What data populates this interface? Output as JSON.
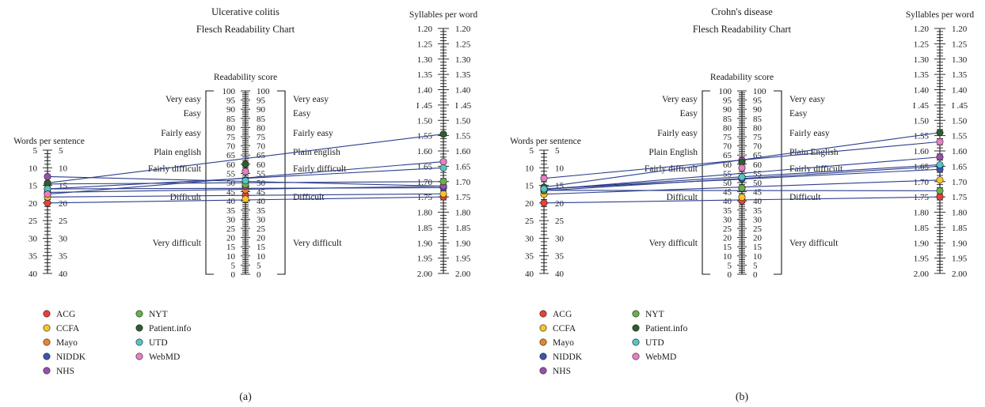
{
  "labels": {
    "words_axis": "Words per sentence",
    "readability_axis": "Readability score",
    "syllables_axis": "Syllables per word"
  },
  "words_ticks": [
    "5",
    "10",
    "15",
    "20",
    "25",
    "30",
    "35",
    "40"
  ],
  "readability_ticks": [
    "100",
    "95",
    "90",
    "85",
    "80",
    "75",
    "70",
    "65",
    "60",
    "55",
    "50",
    "45",
    "40",
    "35",
    "30",
    "25",
    "20",
    "15",
    "10",
    "5",
    "0"
  ],
  "syllable_ticks": [
    "1.20",
    "1.25",
    "1.30",
    "1.35",
    "1.40",
    "I .45",
    "1.50",
    "1.55",
    "1.60",
    "1.65",
    "1.70",
    "1.75",
    "1.80",
    "1.85",
    "1.90",
    "1.95",
    "2.00"
  ],
  "legend": [
    {
      "name": "ACG",
      "color": "#e8403a"
    },
    {
      "name": "CCFA",
      "color": "#f5c52a"
    },
    {
      "name": "Mayo",
      "color": "#e8862e"
    },
    {
      "name": "NIDDK",
      "color": "#3b57b0"
    },
    {
      "name": "NHS",
      "color": "#9a4fae"
    },
    {
      "name": "NYT",
      "color": "#6ab04c"
    },
    {
      "name": "Patient.info",
      "color": "#2e5e2e"
    },
    {
      "name": "UTD",
      "color": "#55c4c4"
    },
    {
      "name": "WebMD",
      "color": "#e77fc4"
    }
  ],
  "chart_data": [
    {
      "type": "scatter",
      "panel_label": "(a)",
      "title": "Ulcerative colitis",
      "subtitle": "Flesch Readability Chart",
      "xlabel": "Words per sentence",
      "ylabel": "Syllables per word",
      "categories_left": [
        "Very easy",
        "Easy",
        "Fairly easy",
        "Plain english",
        "Fairly difficult",
        "Difficult",
        "Very difficult"
      ],
      "categories_right": [
        "Very easy",
        "Easy",
        "Fairly easy",
        "Plain english",
        "Fairly difficult",
        "Difficult",
        "Very difficult"
      ],
      "axis_ranges": {
        "words_per_sentence": [
          5,
          40
        ],
        "readability_score": [
          0,
          100
        ],
        "syllables_per_word": [
          1.2,
          2.0
        ]
      },
      "series": [
        {
          "name": "ACG",
          "words": 20.0,
          "readability": 43,
          "syllables": 1.75
        },
        {
          "name": "CCFA",
          "words": 18.3,
          "readability": 41,
          "syllables": 1.74
        },
        {
          "name": "Mayo",
          "words": 17.0,
          "readability": 46,
          "syllables": 1.715
        },
        {
          "name": "NIDDK",
          "words": 16.0,
          "readability": 48,
          "syllables": 1.72
        },
        {
          "name": "NHS",
          "words": 12.5,
          "readability": 48,
          "syllables": 1.715
        },
        {
          "name": "NYT",
          "words": 14.6,
          "readability": 49,
          "syllables": 1.7
        },
        {
          "name": "Patient.info",
          "words": 14.3,
          "readability": 60,
          "syllables": 1.545
        },
        {
          "name": "UTD",
          "words": 16.0,
          "readability": 51,
          "syllables": 1.655
        },
        {
          "name": "WebMD",
          "words": 17.5,
          "readability": 56,
          "syllables": 1.635
        }
      ]
    },
    {
      "type": "scatter",
      "panel_label": "(b)",
      "title": "Crohn's disease",
      "subtitle": "Flesch Readability Chart",
      "xlabel": "Words per sentence",
      "ylabel": "Syllables per word",
      "categories_left": [
        "Very easy",
        "Easy",
        "Fairly easy",
        "Plain English",
        "Fairly difficult",
        "Difficult",
        "Very difficult"
      ],
      "categories_right": [
        "Very easy",
        "Easy",
        "Fairly easy",
        "Plain English",
        "Fairly difficult",
        "Difficult",
        "Very difficult"
      ],
      "axis_ranges": {
        "words_per_sentence": [
          5,
          40
        ],
        "readability_score": [
          0,
          100
        ],
        "syllables_per_word": [
          1.2,
          2.0
        ]
      },
      "series": [
        {
          "name": "ACG",
          "words": 20.0,
          "readability": 40,
          "syllables": 1.75
        },
        {
          "name": "CCFA",
          "words": 17.5,
          "readability": 42,
          "syllables": 1.695
        },
        {
          "name": "Mayo",
          "words": 16.5,
          "readability": 47,
          "syllables": 1.65
        },
        {
          "name": "NIDDK",
          "words": 16.0,
          "readability": 52,
          "syllables": 1.66
        },
        {
          "name": "NHS",
          "words": 16.2,
          "readability": 62,
          "syllables": 1.62
        },
        {
          "name": "NYT",
          "words": 16.4,
          "readability": 47,
          "syllables": 1.73
        },
        {
          "name": "Patient.info",
          "words": 15.5,
          "readability": 61,
          "syllables": 1.54
        },
        {
          "name": "UTD",
          "words": 16.0,
          "readability": 53,
          "syllables": 1.645
        },
        {
          "name": "WebMD",
          "words": 13.0,
          "readability": 58,
          "syllables": 1.57
        }
      ]
    }
  ]
}
